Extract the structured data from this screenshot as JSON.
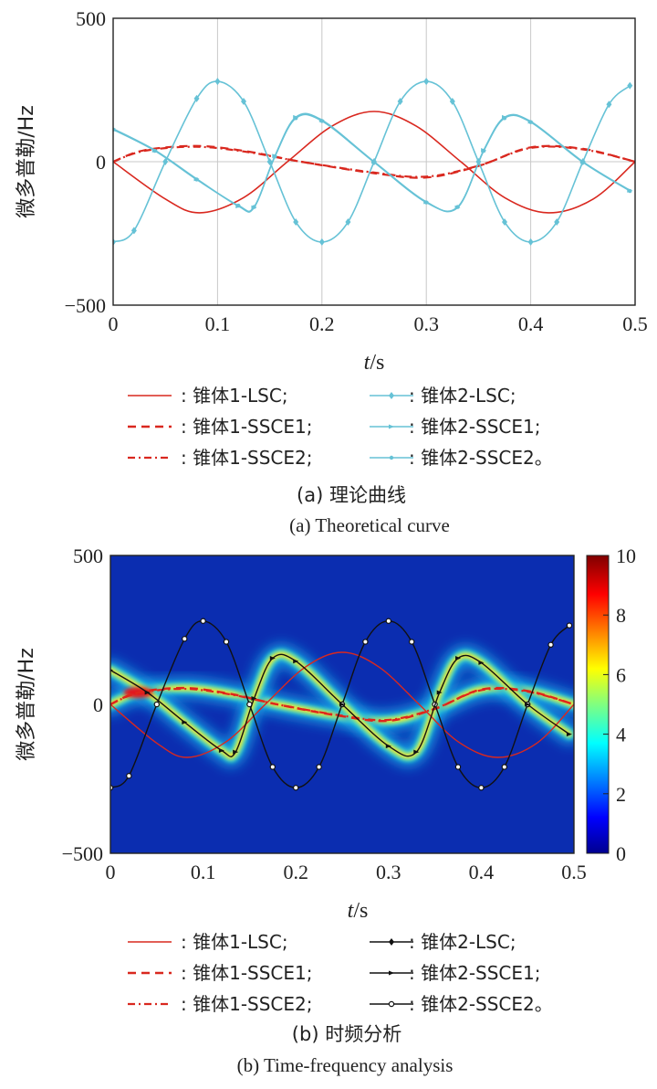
{
  "colors": {
    "cone1": "#d9281f",
    "cone2_a": "#66c2d6",
    "cone2_b": "#111111"
  },
  "chart_data": [
    {
      "type": "line",
      "panel": "a",
      "ylabel": "微多普勒/Hz",
      "xlabel_italic": "t",
      "xlabel_unit": "/s",
      "xlim": [
        0,
        0.5
      ],
      "ylim": [
        -500,
        500
      ],
      "xticks": [
        "0",
        "0.1",
        "0.2",
        "0.3",
        "0.4",
        "0.5"
      ],
      "yticks": [
        "500",
        "0",
        "−500"
      ],
      "grid": true,
      "series": [
        {
          "name": "锥体1-LSC",
          "style": "solid",
          "color": "#d9281f",
          "marker": "none",
          "x": [
            0,
            0.05,
            0.083,
            0.125,
            0.167,
            0.21,
            0.25,
            0.29,
            0.333,
            0.375,
            0.417,
            0.46,
            0.5
          ],
          "y": [
            0,
            -130,
            -178,
            -125,
            0,
            125,
            175,
            125,
            0,
            -125,
            -178,
            -130,
            0
          ]
        },
        {
          "name": "锥体1-SSCE1",
          "style": "dashed",
          "color": "#d9281f",
          "marker": "none",
          "x": [
            0,
            0.03,
            0.08,
            0.13,
            0.18,
            0.25,
            0.3,
            0.35,
            0.4,
            0.45,
            0.5
          ],
          "y": [
            0,
            40,
            55,
            35,
            0,
            -40,
            -55,
            -15,
            50,
            45,
            0
          ]
        },
        {
          "name": "锥体1-SSCE2",
          "style": "dashdot",
          "color": "#d9281f",
          "marker": "none",
          "x": [
            0,
            0.03,
            0.08,
            0.13,
            0.18,
            0.25,
            0.3,
            0.35,
            0.4,
            0.45,
            0.5
          ],
          "y": [
            0,
            38,
            52,
            33,
            0,
            -38,
            -52,
            -14,
            48,
            43,
            0
          ]
        },
        {
          "name": "锥体2-LSC",
          "style": "solid",
          "color": "#66c2d6",
          "marker": "diamond",
          "x": [
            0,
            0.02,
            0.05,
            0.08,
            0.1,
            0.125,
            0.15,
            0.175,
            0.2,
            0.225,
            0.25,
            0.275,
            0.3,
            0.325,
            0.35,
            0.375,
            0.4,
            0.425,
            0.45,
            0.475,
            0.495
          ],
          "y": [
            -280,
            -240,
            0,
            220,
            280,
            210,
            0,
            -210,
            -280,
            -210,
            0,
            210,
            280,
            210,
            0,
            -210,
            -280,
            -210,
            0,
            200,
            265
          ]
        },
        {
          "name": "锥体2-SSCE1",
          "style": "solid",
          "color": "#66c2d6",
          "marker": "tri",
          "x": [
            0,
            0.04,
            0.08,
            0.12,
            0.135,
            0.155,
            0.175,
            0.2,
            0.25,
            0.3,
            0.33,
            0.355,
            0.375,
            0.4,
            0.45,
            0.495
          ],
          "y": [
            115,
            40,
            -60,
            -155,
            -160,
            20,
            155,
            145,
            0,
            -140,
            -160,
            40,
            155,
            140,
            0,
            -100
          ]
        },
        {
          "name": "锥体2-SSCE2",
          "style": "solid",
          "color": "#66c2d6",
          "marker": "dot",
          "x": [
            0,
            0.04,
            0.08,
            0.12,
            0.135,
            0.155,
            0.175,
            0.2,
            0.25,
            0.3,
            0.33,
            0.355,
            0.375,
            0.4,
            0.45,
            0.495
          ],
          "y": [
            112,
            38,
            -62,
            -153,
            -158,
            18,
            152,
            142,
            -2,
            -142,
            -158,
            38,
            152,
            138,
            -2,
            -102
          ]
        }
      ],
      "legend_rows": [
        [
          ": 锥体1-LSC;",
          ": 锥体2-LSC;"
        ],
        [
          ": 锥体1-SSCE1;",
          ": 锥体2-SSCE1;"
        ],
        [
          ": 锥体1-SSCE2;",
          ": 锥体2-SSCE2。"
        ]
      ],
      "caption_zh": "(a) 理论曲线",
      "caption_en": "(a) Theoretical curve"
    },
    {
      "type": "heatmap",
      "panel": "b",
      "ylabel": "微多普勒/Hz",
      "xlabel_italic": "t",
      "xlabel_unit": "/s",
      "xlim": [
        0,
        0.5
      ],
      "ylim": [
        -500,
        500
      ],
      "xticks": [
        "0",
        "0.1",
        "0.2",
        "0.3",
        "0.4",
        "0.5"
      ],
      "yticks": [
        "500",
        "0",
        "−500"
      ],
      "colorbar": {
        "range": [
          0,
          10
        ],
        "ticks": [
          "10",
          "8",
          "6",
          "4",
          "2",
          "0"
        ]
      },
      "legend_rows": [
        [
          ": 锥体1-LSC;",
          ": 锥体2-LSC;"
        ],
        [
          ": 锥体1-SSCE1;",
          ": 锥体2-SSCE1;"
        ],
        [
          ": 锥体1-SSCE2;",
          ": 锥体2-SSCE2。"
        ]
      ],
      "caption_zh": "(b) 时频分析",
      "caption_en": "(b) Time-frequency analysis"
    }
  ]
}
